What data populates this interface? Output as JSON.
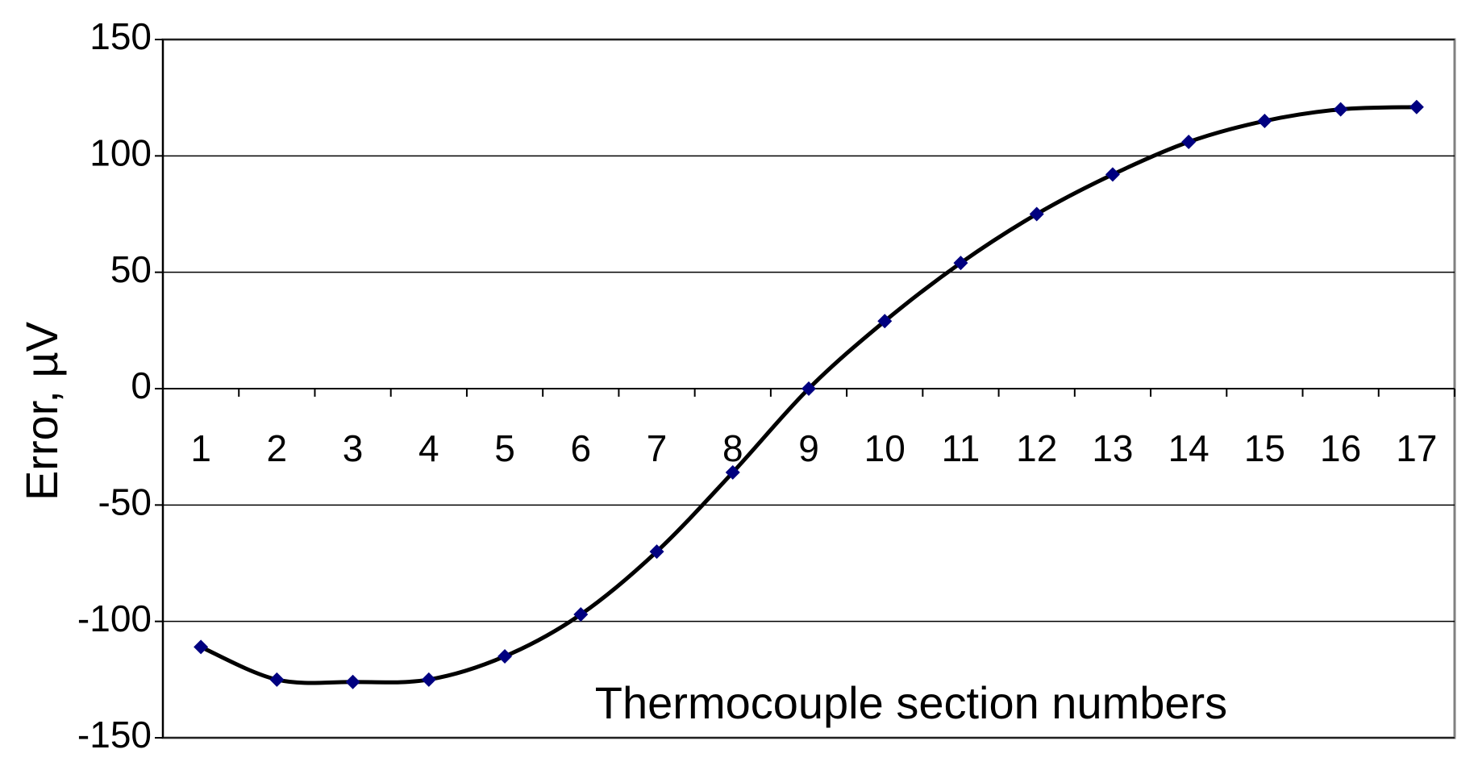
{
  "chart_data": {
    "type": "line",
    "x_label": "Thermocouple section numbers",
    "y_label": "Error, µV",
    "categories": [
      "1",
      "2",
      "3",
      "4",
      "5",
      "6",
      "7",
      "8",
      "9",
      "10",
      "11",
      "12",
      "13",
      "14",
      "15",
      "16",
      "17"
    ],
    "series": [
      {
        "name": "Error",
        "color": "#000080",
        "values": [
          -111,
          -125,
          -126,
          -125,
          -115,
          -97,
          -70,
          -36,
          0,
          29,
          54,
          75,
          92,
          106,
          115,
          120,
          121
        ]
      }
    ],
    "ylim": [
      -150,
      150
    ],
    "yticks": [
      -150,
      -100,
      -50,
      0,
      50,
      100,
      150
    ],
    "grid": true
  }
}
